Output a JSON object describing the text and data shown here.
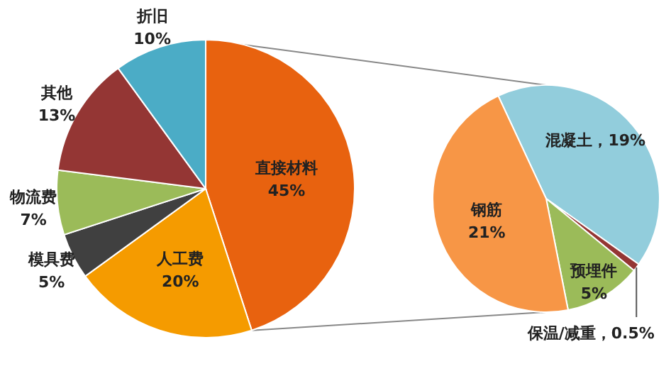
{
  "chart_data": [
    {
      "type": "pie",
      "categories": [
        "直接材料",
        "人工费",
        "模具费",
        "物流费",
        "其他",
        "折旧"
      ],
      "values": [
        45,
        20,
        5,
        7,
        13,
        10
      ],
      "colors": [
        "#e8620f",
        "#f59b00",
        "#404040",
        "#9bbb59",
        "#943634",
        "#4bacc6"
      ],
      "value_labels": [
        "45%",
        "20%",
        "5%",
        "7%",
        "13%",
        "10%"
      ]
    },
    {
      "type": "pie",
      "categories": [
        "混凝土",
        "保温/减重",
        "预埋件",
        "钢筋"
      ],
      "values": [
        19,
        0.5,
        5,
        21
      ],
      "colors": [
        "#92cddc",
        "#943634",
        "#9bbb59",
        "#f79646"
      ],
      "value_labels": [
        "19%",
        "0.5%",
        "5%",
        "21%"
      ]
    }
  ]
}
